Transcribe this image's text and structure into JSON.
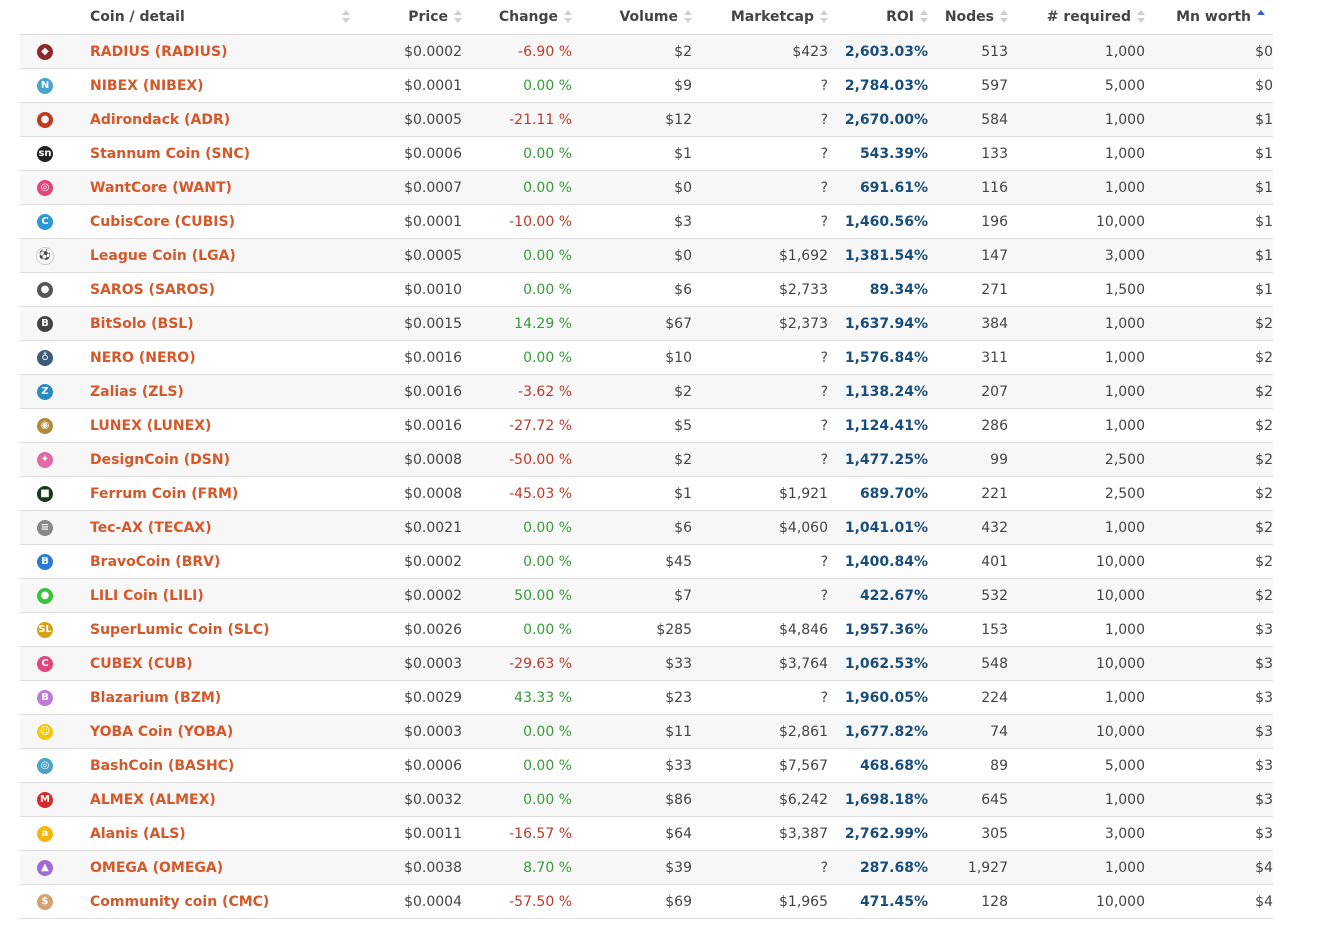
{
  "columns": {
    "coin": "Coin / detail",
    "price": "Price",
    "change": "Change",
    "volume": "Volume",
    "marketcap": "Marketcap",
    "roi": "ROI",
    "nodes": "Nodes",
    "required": "# required",
    "mnworth": "Mn worth"
  },
  "rows": [
    {
      "icon": "radius-icon",
      "glyph": "◆",
      "color": "#8b2a2a",
      "name": "RADIUS (RADIUS)",
      "price": "$0.0002",
      "change": "-6.90 %",
      "dir": "neg",
      "volume": "$2",
      "marketcap": "$423",
      "roi": "2,603.03%",
      "nodes": "513",
      "required": "1,000",
      "mn": "$0"
    },
    {
      "icon": "nibex-icon",
      "glyph": "N",
      "color": "#4aa3c8",
      "name": "NIBEX (NIBEX)",
      "price": "$0.0001",
      "change": "0.00 %",
      "dir": "pos",
      "volume": "$9",
      "marketcap": "?",
      "roi": "2,784.03%",
      "nodes": "597",
      "required": "5,000",
      "mn": "$0"
    },
    {
      "icon": "adirondack-icon",
      "glyph": "●",
      "color": "#c0391f",
      "name": "Adirondack (ADR)",
      "price": "$0.0005",
      "change": "-21.11 %",
      "dir": "neg",
      "volume": "$12",
      "marketcap": "?",
      "roi": "2,670.00%",
      "nodes": "584",
      "required": "1,000",
      "mn": "$1"
    },
    {
      "icon": "stannum-icon",
      "glyph": "sn",
      "color": "#222222",
      "name": "Stannum Coin (SNC)",
      "price": "$0.0006",
      "change": "0.00 %",
      "dir": "pos",
      "volume": "$1",
      "marketcap": "?",
      "roi": "543.39%",
      "nodes": "133",
      "required": "1,000",
      "mn": "$1"
    },
    {
      "icon": "wantcore-icon",
      "glyph": "◎",
      "color": "#e0457b",
      "name": "WantCore (WANT)",
      "price": "$0.0007",
      "change": "0.00 %",
      "dir": "pos",
      "volume": "$0",
      "marketcap": "?",
      "roi": "691.61%",
      "nodes": "116",
      "required": "1,000",
      "mn": "$1"
    },
    {
      "icon": "cubiscore-icon",
      "glyph": "C",
      "color": "#2a9ad6",
      "name": "CubisCore (CUBIS)",
      "price": "$0.0001",
      "change": "-10.00 %",
      "dir": "neg",
      "volume": "$3",
      "marketcap": "?",
      "roi": "1,460.56%",
      "nodes": "196",
      "required": "10,000",
      "mn": "$1"
    },
    {
      "icon": "league-coin-icon",
      "glyph": "⚽",
      "color": "#ffffff",
      "name": "League Coin (LGA)",
      "price": "$0.0005",
      "change": "0.00 %",
      "dir": "pos",
      "volume": "$0",
      "marketcap": "$1,692",
      "roi": "1,381.54%",
      "nodes": "147",
      "required": "3,000",
      "mn": "$1"
    },
    {
      "icon": "saros-icon",
      "glyph": "●",
      "color": "#555555",
      "name": "SAROS (SAROS)",
      "price": "$0.0010",
      "change": "0.00 %",
      "dir": "pos",
      "volume": "$6",
      "marketcap": "$2,733",
      "roi": "89.34%",
      "nodes": "271",
      "required": "1,500",
      "mn": "$1"
    },
    {
      "icon": "bitsolo-icon",
      "glyph": "B",
      "color": "#444444",
      "name": "BitSolo (BSL)",
      "price": "$0.0015",
      "change": "14.29 %",
      "dir": "pos",
      "volume": "$67",
      "marketcap": "$2,373",
      "roi": "1,637.94%",
      "nodes": "384",
      "required": "1,000",
      "mn": "$2"
    },
    {
      "icon": "nero-icon",
      "glyph": "♁",
      "color": "#3d5a7a",
      "name": "NERO (NERO)",
      "price": "$0.0016",
      "change": "0.00 %",
      "dir": "pos",
      "volume": "$10",
      "marketcap": "?",
      "roi": "1,576.84%",
      "nodes": "311",
      "required": "1,000",
      "mn": "$2"
    },
    {
      "icon": "zalias-icon",
      "glyph": "Z",
      "color": "#2a8ac6",
      "name": "Zalias (ZLS)",
      "price": "$0.0016",
      "change": "-3.62 %",
      "dir": "neg",
      "volume": "$2",
      "marketcap": "?",
      "roi": "1,138.24%",
      "nodes": "207",
      "required": "1,000",
      "mn": "$2"
    },
    {
      "icon": "lunex-icon",
      "glyph": "◉",
      "color": "#b08a3a",
      "name": "LUNEX (LUNEX)",
      "price": "$0.0016",
      "change": "-27.72 %",
      "dir": "neg",
      "volume": "$5",
      "marketcap": "?",
      "roi": "1,124.41%",
      "nodes": "286",
      "required": "1,000",
      "mn": "$2"
    },
    {
      "icon": "designcoin-icon",
      "glyph": "✦",
      "color": "#e06aa8",
      "name": "DesignCoin (DSN)",
      "price": "$0.0008",
      "change": "-50.00 %",
      "dir": "neg",
      "volume": "$2",
      "marketcap": "?",
      "roi": "1,477.25%",
      "nodes": "99",
      "required": "2,500",
      "mn": "$2"
    },
    {
      "icon": "ferrum-coin-icon",
      "glyph": "■",
      "color": "#1a3a1a",
      "name": "Ferrum Coin (FRM)",
      "price": "$0.0008",
      "change": "-45.03 %",
      "dir": "neg",
      "volume": "$1",
      "marketcap": "$1,921",
      "roi": "689.70%",
      "nodes": "221",
      "required": "2,500",
      "mn": "$2"
    },
    {
      "icon": "tec-ax-icon",
      "glyph": "≡",
      "color": "#888888",
      "name": "Tec-AX (TECAX)",
      "price": "$0.0021",
      "change": "0.00 %",
      "dir": "pos",
      "volume": "$6",
      "marketcap": "$4,060",
      "roi": "1,041.01%",
      "nodes": "432",
      "required": "1,000",
      "mn": "$2"
    },
    {
      "icon": "bravocoin-icon",
      "glyph": "B",
      "color": "#2a7ad6",
      "name": "BravoCoin (BRV)",
      "price": "$0.0002",
      "change": "0.00 %",
      "dir": "pos",
      "volume": "$45",
      "marketcap": "?",
      "roi": "1,400.84%",
      "nodes": "401",
      "required": "10,000",
      "mn": "$2"
    },
    {
      "icon": "lili-coin-icon",
      "glyph": "●",
      "color": "#3ac43a",
      "name": "LILI Coin (LILI)",
      "price": "$0.0002",
      "change": "50.00 %",
      "dir": "pos",
      "volume": "$7",
      "marketcap": "?",
      "roi": "422.67%",
      "nodes": "532",
      "required": "10,000",
      "mn": "$2"
    },
    {
      "icon": "superlumic-icon",
      "glyph": "SL",
      "color": "#d4a017",
      "name": "SuperLumic Coin (SLC)",
      "price": "$0.0026",
      "change": "0.00 %",
      "dir": "pos",
      "volume": "$285",
      "marketcap": "$4,846",
      "roi": "1,957.36%",
      "nodes": "153",
      "required": "1,000",
      "mn": "$3"
    },
    {
      "icon": "cubex-icon",
      "glyph": "C",
      "color": "#e0457b",
      "name": "CUBEX (CUB)",
      "price": "$0.0003",
      "change": "-29.63 %",
      "dir": "neg",
      "volume": "$33",
      "marketcap": "$3,764",
      "roi": "1,062.53%",
      "nodes": "548",
      "required": "10,000",
      "mn": "$3"
    },
    {
      "icon": "blazarium-icon",
      "glyph": "B",
      "color": "#c07ad6",
      "name": "Blazarium (BZM)",
      "price": "$0.0029",
      "change": "43.33 %",
      "dir": "pos",
      "volume": "$23",
      "marketcap": "?",
      "roi": "1,960.05%",
      "nodes": "224",
      "required": "1,000",
      "mn": "$3"
    },
    {
      "icon": "yoba-coin-icon",
      "glyph": "☺",
      "color": "#f2c80f",
      "name": "YOBA Coin (YOBA)",
      "price": "$0.0003",
      "change": "0.00 %",
      "dir": "pos",
      "volume": "$11",
      "marketcap": "$2,861",
      "roi": "1,677.82%",
      "nodes": "74",
      "required": "10,000",
      "mn": "$3"
    },
    {
      "icon": "bashcoin-icon",
      "glyph": "◎",
      "color": "#4aa3c8",
      "name": "BashCoin (BASHC)",
      "price": "$0.0006",
      "change": "0.00 %",
      "dir": "pos",
      "volume": "$33",
      "marketcap": "$7,567",
      "roi": "468.68%",
      "nodes": "89",
      "required": "5,000",
      "mn": "$3"
    },
    {
      "icon": "almex-icon",
      "glyph": "M",
      "color": "#d42a2a",
      "name": "ALMEX (ALMEX)",
      "price": "$0.0032",
      "change": "0.00 %",
      "dir": "pos",
      "volume": "$86",
      "marketcap": "$6,242",
      "roi": "1,698.18%",
      "nodes": "645",
      "required": "1,000",
      "mn": "$3"
    },
    {
      "icon": "alanis-icon",
      "glyph": "a",
      "color": "#f2b80f",
      "name": "Alanis (ALS)",
      "price": "$0.0011",
      "change": "-16.57 %",
      "dir": "neg",
      "volume": "$64",
      "marketcap": "$3,387",
      "roi": "2,762.99%",
      "nodes": "305",
      "required": "3,000",
      "mn": "$3"
    },
    {
      "icon": "omega-icon",
      "glyph": "▲",
      "color": "#a06ad6",
      "name": "OMEGA (OMEGA)",
      "price": "$0.0038",
      "change": "8.70 %",
      "dir": "pos",
      "volume": "$39",
      "marketcap": "?",
      "roi": "287.68%",
      "nodes": "1,927",
      "required": "1,000",
      "mn": "$4"
    },
    {
      "icon": "community-coin-icon",
      "glyph": "$",
      "color": "#d4a070",
      "name": "Community coin (CMC)",
      "price": "$0.0004",
      "change": "-57.50 %",
      "dir": "neg",
      "volume": "$69",
      "marketcap": "$1,965",
      "roi": "471.45%",
      "nodes": "128",
      "required": "10,000",
      "mn": "$4"
    }
  ]
}
